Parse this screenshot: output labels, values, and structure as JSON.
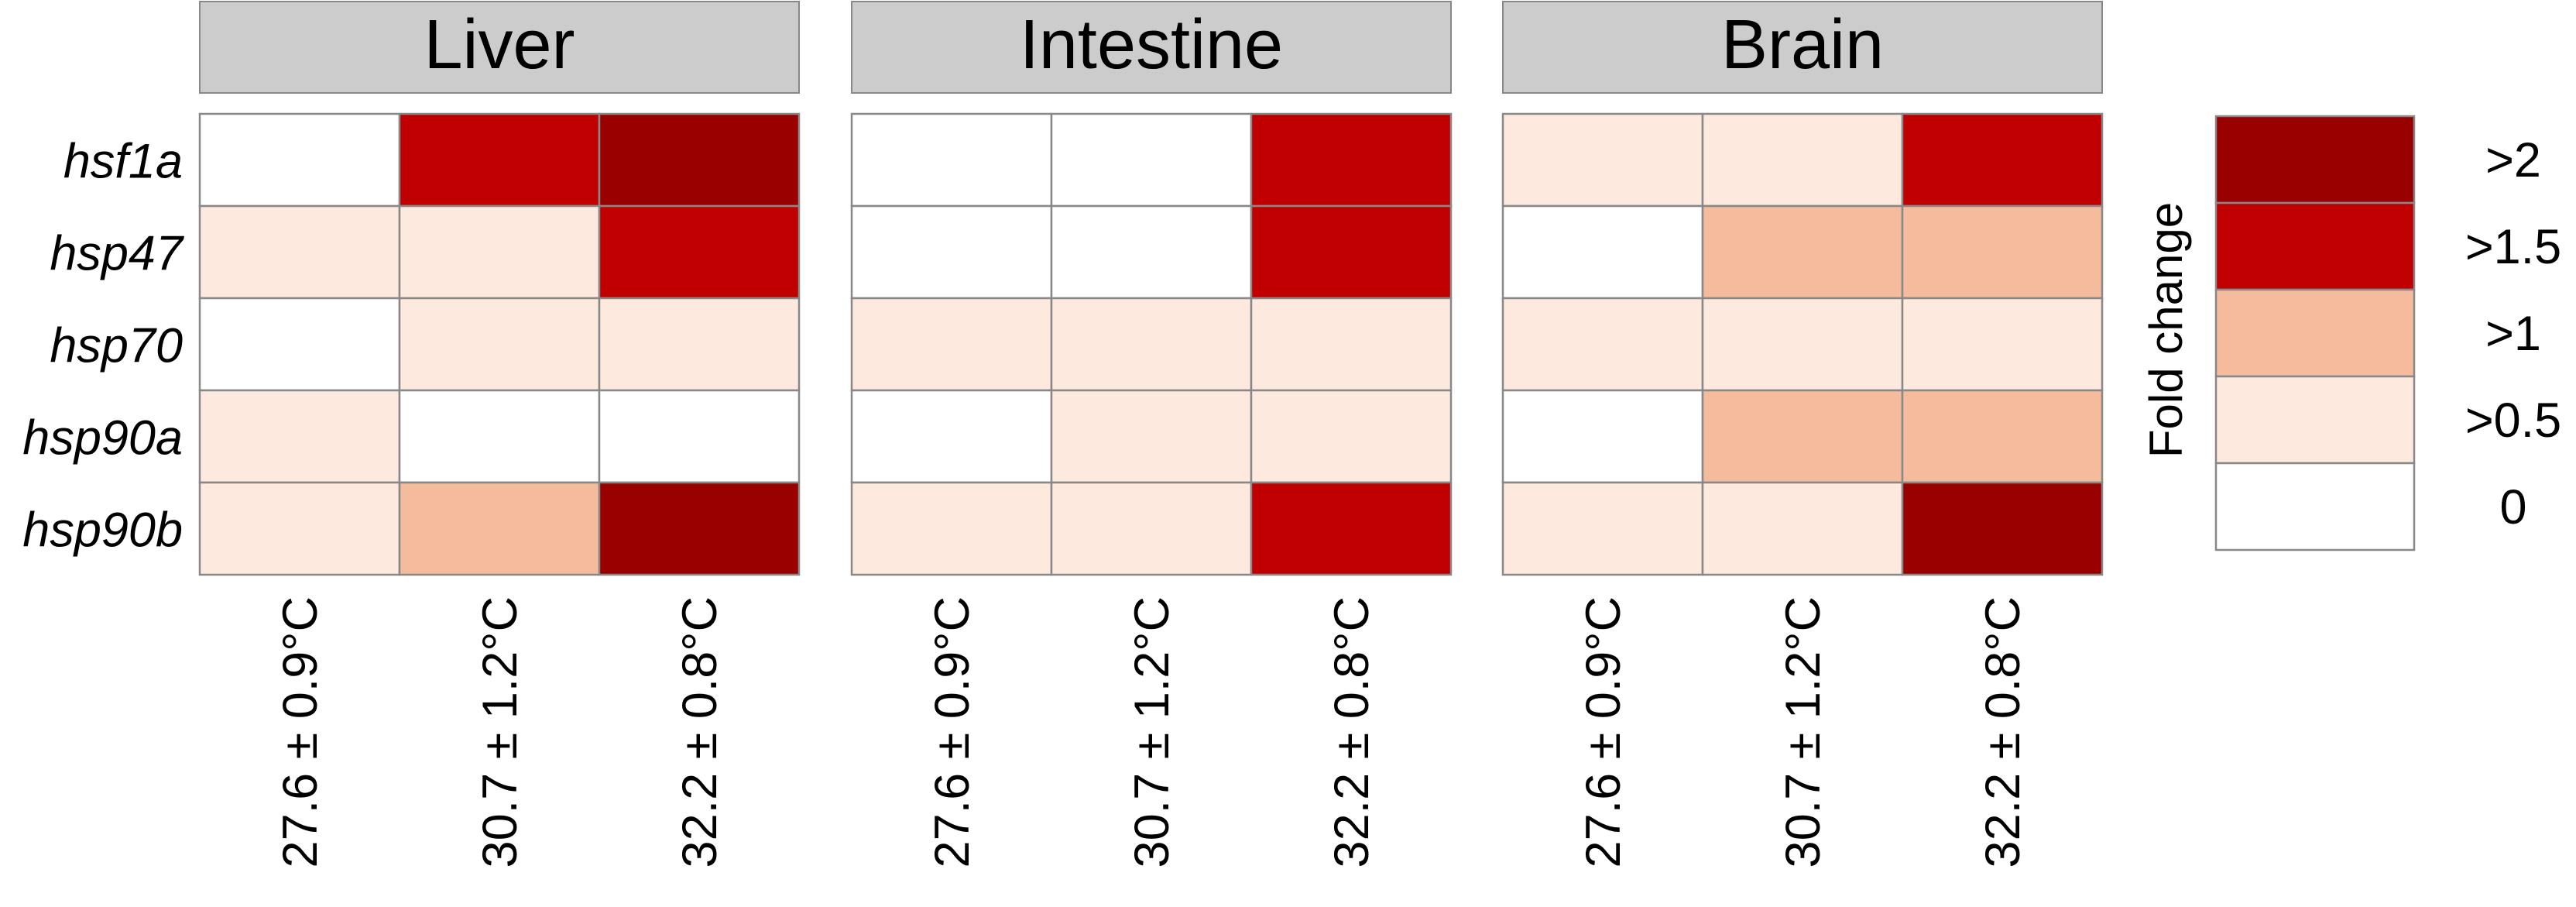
{
  "chart_data": {
    "type": "heatmap",
    "panels": [
      {
        "title": "Liver",
        "categories": [
          "27.6 ± 0.9°C",
          "30.7 ± 1.2°C",
          "32.2 ± 0.8°C"
        ],
        "rows": [
          "hsf1a",
          "hsp47",
          "hsp70",
          "hsp90a",
          "hsp90b"
        ],
        "values": [
          [
            "0",
            ">1.5",
            ">2"
          ],
          [
            ">0.5",
            ">0.5",
            ">1.5"
          ],
          [
            "0",
            ">0.5",
            ">0.5"
          ],
          [
            ">0.5",
            "0",
            "0"
          ],
          [
            ">0.5",
            ">1",
            ">2"
          ]
        ]
      },
      {
        "title": "Intestine",
        "categories": [
          "27.6 ± 0.9°C",
          "30.7 ± 1.2°C",
          "32.2 ± 0.8°C"
        ],
        "rows": [
          "hsf1a",
          "hsp47",
          "hsp70",
          "hsp90a",
          "hsp90b"
        ],
        "values": [
          [
            "0",
            "0",
            ">1.5"
          ],
          [
            "0",
            "0",
            ">1.5"
          ],
          [
            ">0.5",
            ">0.5",
            ">0.5"
          ],
          [
            "0",
            ">0.5",
            ">0.5"
          ],
          [
            ">0.5",
            ">0.5",
            ">1.5"
          ]
        ]
      },
      {
        "title": "Brain",
        "categories": [
          "27.6 ± 0.9°C",
          "30.7 ± 1.2°C",
          "32.2 ± 0.8°C"
        ],
        "rows": [
          "hsf1a",
          "hsp47",
          "hsp70",
          "hsp90a",
          "hsp90b"
        ],
        "values": [
          [
            ">0.5",
            ">0.5",
            ">1.5"
          ],
          [
            "0",
            ">1",
            ">1"
          ],
          [
            ">0.5",
            ">0.5",
            ">0.5"
          ],
          [
            "0",
            ">1",
            ">1"
          ],
          [
            ">0.5",
            ">0.5",
            ">2"
          ]
        ]
      }
    ],
    "legend": {
      "title": "Fold change",
      "levels": [
        ">2",
        ">1.5",
        ">1",
        ">0.5",
        "0"
      ],
      "colors": {
        ">2": "#990000",
        ">1.5": "#c00000",
        ">1": "#f4bb9d",
        ">0.5": "#fde9de",
        "0": "#ffffff"
      },
      "placement": "right"
    },
    "colors": {
      "header_fill": "#cccccc",
      "grid_line": "#888888"
    }
  }
}
